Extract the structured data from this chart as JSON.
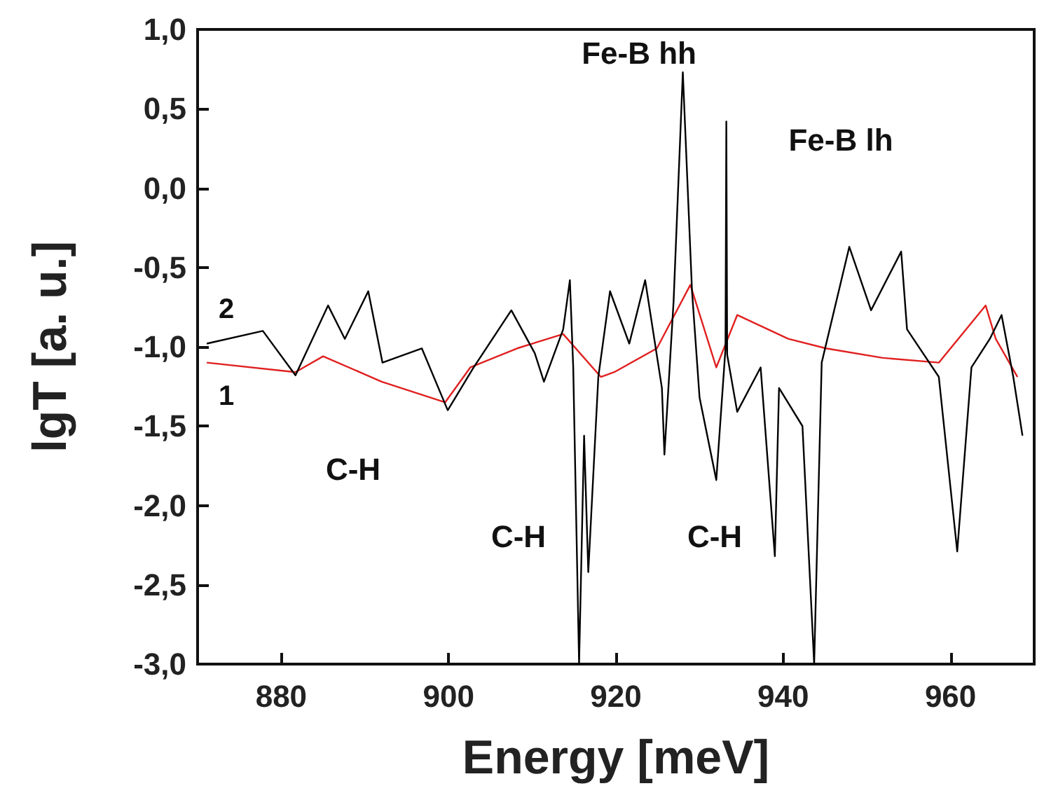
{
  "chart_data": {
    "type": "line",
    "xlabel": "Energy [meV]",
    "ylabel": "lgT [a. u.]",
    "xlim": [
      870,
      970
    ],
    "xticks": [
      880,
      900,
      920,
      940,
      960
    ],
    "ylim": [
      -3.0,
      1.0
    ],
    "yticks": [
      {
        "value": -3.0,
        "label": "-3,0"
      },
      {
        "value": -2.5,
        "label": "-2,5"
      },
      {
        "value": -2.0,
        "label": "-2,0"
      },
      {
        "value": -1.5,
        "label": "-1,5"
      },
      {
        "value": -1.0,
        "label": "-1,0"
      },
      {
        "value": -0.5,
        "label": "-0,5"
      },
      {
        "value": 0.0,
        "label": "0,0"
      },
      {
        "value": 0.5,
        "label": "0,5"
      },
      {
        "value": 1.0,
        "label": "1,0"
      }
    ],
    "grid": false,
    "legend": false,
    "marker": "none",
    "line_style": "solid",
    "series": [
      {
        "name": "1",
        "color": "#e02020",
        "x": [
          871.1,
          881.7,
          885,
          892,
          899.6,
          902.6,
          908.2,
          913.7,
          918.2,
          919.8,
          924.9,
          928.9,
          932,
          934.5,
          940.6,
          945.1,
          951.9,
          958.6,
          964.2,
          965.4,
          968
        ],
        "values": [
          -1.1,
          -1.16,
          -1.06,
          -1.22,
          -1.35,
          -1.13,
          -1.01,
          -0.92,
          -1.19,
          -1.16,
          -1.01,
          -0.61,
          -1.13,
          -0.8,
          -0.95,
          -1.01,
          -1.07,
          -1.1,
          -0.74,
          -0.95,
          -1.19
        ]
      },
      {
        "name": "2",
        "color": "#000000",
        "x": [
          871.1,
          877.8,
          881.7,
          885.6,
          887.6,
          890.4,
          892.1,
          896.8,
          899.9,
          903,
          907.5,
          910.3,
          911.4,
          913.7,
          914.5,
          914.9,
          915.6,
          916.2,
          916.7,
          917.9,
          919.3,
          921.6,
          923.5,
          925.5,
          925.8,
          926.9,
          928,
          929.1,
          930,
          932,
          933.1,
          933.2,
          933.3,
          934.5,
          937.3,
          939,
          939.5,
          942.3,
          943.7,
          944.6,
          947.9,
          950.5,
          954.1,
          954.8,
          958.6,
          960.8,
          962.5,
          964.7,
          966.1,
          967.5,
          968.6
        ],
        "values": [
          -0.98,
          -0.9,
          -1.18,
          -0.74,
          -0.95,
          -0.65,
          -1.1,
          -1.01,
          -1.4,
          -1.13,
          -0.77,
          -1.04,
          -1.22,
          -0.89,
          -0.58,
          -1.13,
          -3.0,
          -1.56,
          -2.42,
          -1.19,
          -0.65,
          -0.98,
          -0.58,
          -1.26,
          -1.68,
          -0.71,
          0.73,
          -0.65,
          -1.32,
          -1.84,
          -1.01,
          0.42,
          -1.05,
          -1.41,
          -1.13,
          -2.32,
          -1.26,
          -1.5,
          -3.0,
          -1.1,
          -0.37,
          -0.77,
          -0.4,
          -0.89,
          -1.19,
          -2.29,
          -1.13,
          -0.95,
          -0.8,
          -1.19,
          -1.56
        ]
      }
    ],
    "annotations": [
      "Fe-B hh",
      "Fe-B lh",
      "C-H",
      "C-H",
      "C-H"
    ]
  }
}
